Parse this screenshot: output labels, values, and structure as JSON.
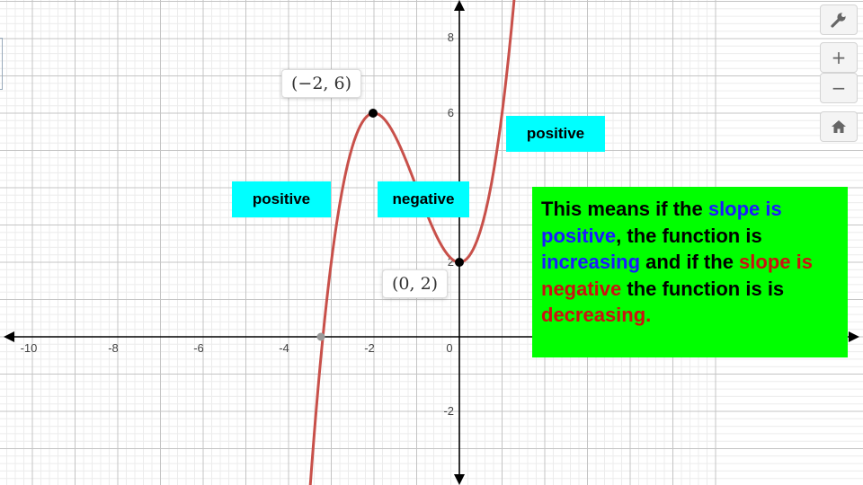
{
  "graph": {
    "x_tick_labels": [
      "-10",
      "-8",
      "-6",
      "-4",
      "-2",
      "0"
    ],
    "y_tick_labels": [
      "8",
      "6",
      "2",
      "-2"
    ],
    "curve_color": "#c8504a",
    "axis_color": "#000000"
  },
  "points": {
    "max_label": "(−2, 6)",
    "min_label": "(0, 2)"
  },
  "annotations": {
    "positive_left": "positive",
    "negative_middle": "negative",
    "positive_right": "positive"
  },
  "explanation": {
    "t1": "This means if the ",
    "t2": "slope is positive",
    "t3": ", the function is ",
    "t4": "increasing",
    "t5": " and if the ",
    "t6": "slope is negative",
    "t7": " the function is is ",
    "t8": "decreasing."
  },
  "toolbar": {
    "settings_icon": "wrench-icon",
    "zoom_in_label": "+",
    "zoom_out_label": "−",
    "home_icon": "home-icon"
  },
  "colors": {
    "highlight_cyan": "#00ffff",
    "box_green": "#00ff00",
    "text_blue": "#1a1aff",
    "text_red": "#cc1111"
  }
}
